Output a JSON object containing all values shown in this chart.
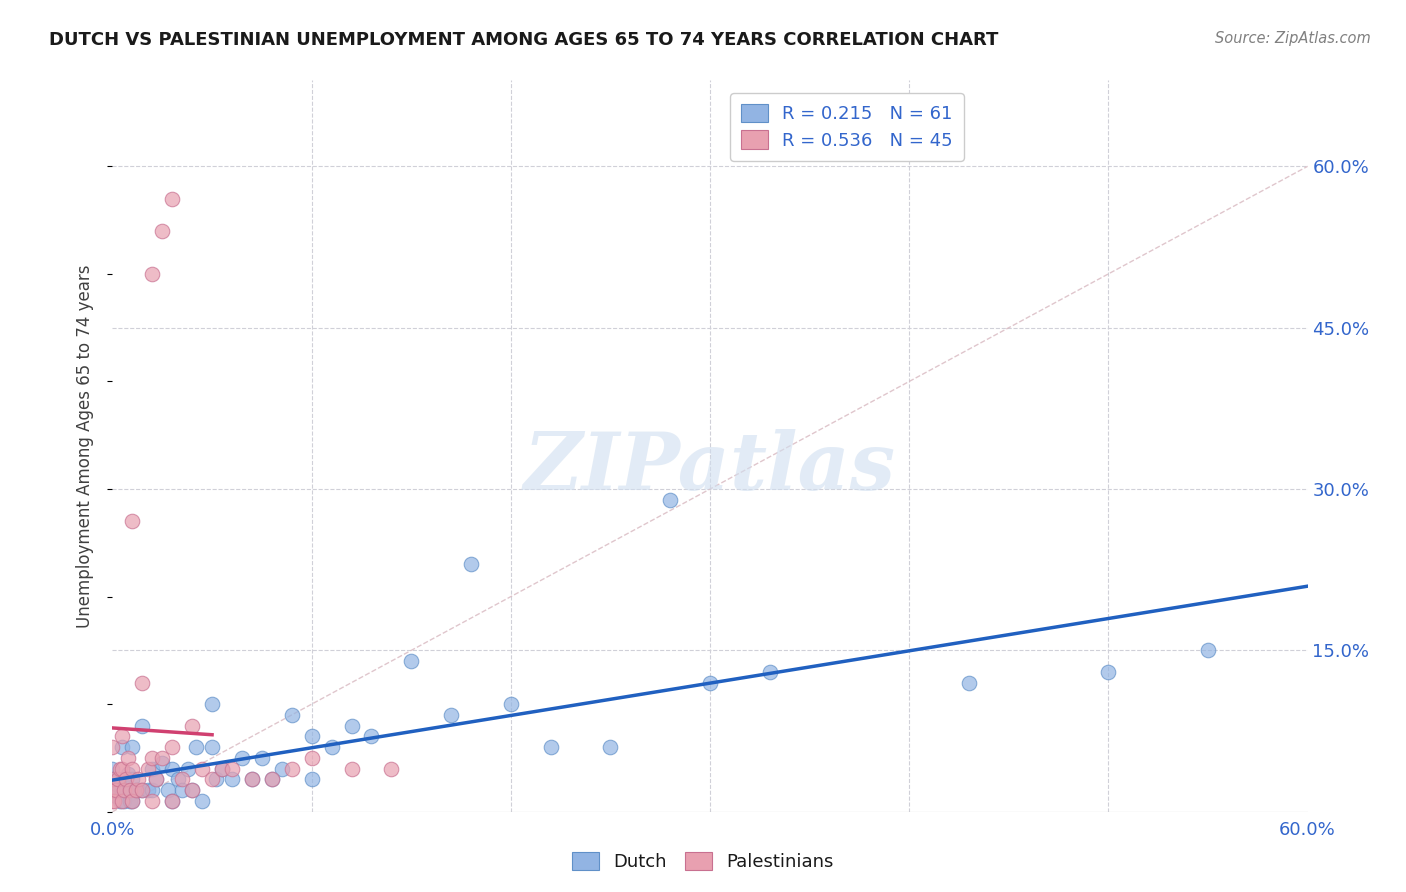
{
  "title": "DUTCH VS PALESTINIAN UNEMPLOYMENT AMONG AGES 65 TO 74 YEARS CORRELATION CHART",
  "source": "Source: ZipAtlas.com",
  "ylabel": "Unemployment Among Ages 65 to 74 years",
  "xlim": [
    0.0,
    0.6
  ],
  "ylim": [
    0.0,
    0.68
  ],
  "xtick_positions": [
    0.0,
    0.1,
    0.2,
    0.3,
    0.4,
    0.5,
    0.6
  ],
  "xtick_labels": [
    "0.0%",
    "",
    "",
    "",
    "",
    "",
    "60.0%"
  ],
  "yticks_right": [
    0.15,
    0.3,
    0.45,
    0.6
  ],
  "ytick_labels_right": [
    "15.0%",
    "30.0%",
    "45.0%",
    "60.0%"
  ],
  "dutch_R": 0.215,
  "dutch_N": 61,
  "pales_R": 0.536,
  "pales_N": 45,
  "dutch_color": "#92b4e3",
  "pales_color": "#e8a0b0",
  "dutch_line_color": "#2060c0",
  "pales_line_color": "#d04070",
  "ref_line_color": "#d8b8c0",
  "watermark_text": "ZIPatlas",
  "dutch_x": [
    0.0,
    0.0,
    0.0,
    0.002,
    0.003,
    0.004,
    0.005,
    0.005,
    0.006,
    0.007,
    0.008,
    0.009,
    0.01,
    0.01,
    0.01,
    0.012,
    0.013,
    0.015,
    0.015,
    0.018,
    0.02,
    0.02,
    0.022,
    0.025,
    0.028,
    0.03,
    0.03,
    0.033,
    0.035,
    0.038,
    0.04,
    0.042,
    0.045,
    0.05,
    0.05,
    0.052,
    0.055,
    0.06,
    0.065,
    0.07,
    0.075,
    0.08,
    0.085,
    0.09,
    0.1,
    0.1,
    0.11,
    0.12,
    0.13,
    0.15,
    0.17,
    0.18,
    0.2,
    0.22,
    0.25,
    0.28,
    0.3,
    0.33,
    0.43,
    0.5,
    0.55
  ],
  "dutch_y": [
    0.02,
    0.03,
    0.04,
    0.015,
    0.025,
    0.01,
    0.02,
    0.06,
    0.01,
    0.02,
    0.035,
    0.01,
    0.01,
    0.03,
    0.06,
    0.02,
    0.02,
    0.02,
    0.08,
    0.02,
    0.02,
    0.04,
    0.03,
    0.045,
    0.02,
    0.01,
    0.04,
    0.03,
    0.02,
    0.04,
    0.02,
    0.06,
    0.01,
    0.06,
    0.1,
    0.03,
    0.04,
    0.03,
    0.05,
    0.03,
    0.05,
    0.03,
    0.04,
    0.09,
    0.03,
    0.07,
    0.06,
    0.08,
    0.07,
    0.14,
    0.09,
    0.23,
    0.1,
    0.06,
    0.06,
    0.29,
    0.12,
    0.13,
    0.12,
    0.13,
    0.15
  ],
  "pales_x": [
    0.0,
    0.0,
    0.0,
    0.0,
    0.001,
    0.002,
    0.003,
    0.004,
    0.005,
    0.005,
    0.005,
    0.006,
    0.007,
    0.008,
    0.009,
    0.01,
    0.01,
    0.01,
    0.012,
    0.013,
    0.015,
    0.015,
    0.018,
    0.02,
    0.02,
    0.022,
    0.025,
    0.03,
    0.03,
    0.035,
    0.04,
    0.04,
    0.045,
    0.05,
    0.055,
    0.06,
    0.07,
    0.08,
    0.09,
    0.1,
    0.12,
    0.14,
    0.02,
    0.025,
    0.03
  ],
  "pales_y": [
    0.01,
    0.02,
    0.03,
    0.06,
    0.01,
    0.02,
    0.03,
    0.04,
    0.01,
    0.04,
    0.07,
    0.02,
    0.03,
    0.05,
    0.02,
    0.01,
    0.04,
    0.27,
    0.02,
    0.03,
    0.02,
    0.12,
    0.04,
    0.01,
    0.05,
    0.03,
    0.05,
    0.01,
    0.06,
    0.03,
    0.02,
    0.08,
    0.04,
    0.03,
    0.04,
    0.04,
    0.03,
    0.03,
    0.04,
    0.05,
    0.04,
    0.04,
    0.5,
    0.54,
    0.57
  ]
}
